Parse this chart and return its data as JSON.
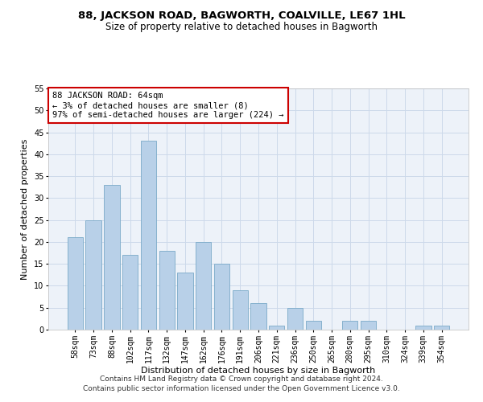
{
  "title": "88, JACKSON ROAD, BAGWORTH, COALVILLE, LE67 1HL",
  "subtitle": "Size of property relative to detached houses in Bagworth",
  "xlabel": "Distribution of detached houses by size in Bagworth",
  "ylabel": "Number of detached properties",
  "bar_labels": [
    "58sqm",
    "73sqm",
    "88sqm",
    "102sqm",
    "117sqm",
    "132sqm",
    "147sqm",
    "162sqm",
    "176sqm",
    "191sqm",
    "206sqm",
    "221sqm",
    "236sqm",
    "250sqm",
    "265sqm",
    "280sqm",
    "295sqm",
    "310sqm",
    "324sqm",
    "339sqm",
    "354sqm"
  ],
  "bar_values": [
    21,
    25,
    33,
    17,
    43,
    18,
    13,
    20,
    15,
    9,
    6,
    1,
    5,
    2,
    0,
    2,
    2,
    0,
    0,
    1,
    1
  ],
  "bar_color": "#b8d0e8",
  "bar_edge_color": "#7aaac8",
  "annotation_box_text": "88 JACKSON ROAD: 64sqm\n← 3% of detached houses are smaller (8)\n97% of semi-detached houses are larger (224) →",
  "annotation_box_color": "#ffffff",
  "annotation_box_edge_color": "#cc0000",
  "ylim": [
    0,
    55
  ],
  "yticks": [
    0,
    5,
    10,
    15,
    20,
    25,
    30,
    35,
    40,
    45,
    50,
    55
  ],
  "grid_color": "#ccd9ea",
  "background_color": "#edf2f9",
  "footer_text": "Contains HM Land Registry data © Crown copyright and database right 2024.\nContains public sector information licensed under the Open Government Licence v3.0.",
  "title_fontsize": 9.5,
  "subtitle_fontsize": 8.5,
  "xlabel_fontsize": 8,
  "ylabel_fontsize": 8,
  "tick_fontsize": 7,
  "annotation_fontsize": 7.5,
  "footer_fontsize": 6.5
}
